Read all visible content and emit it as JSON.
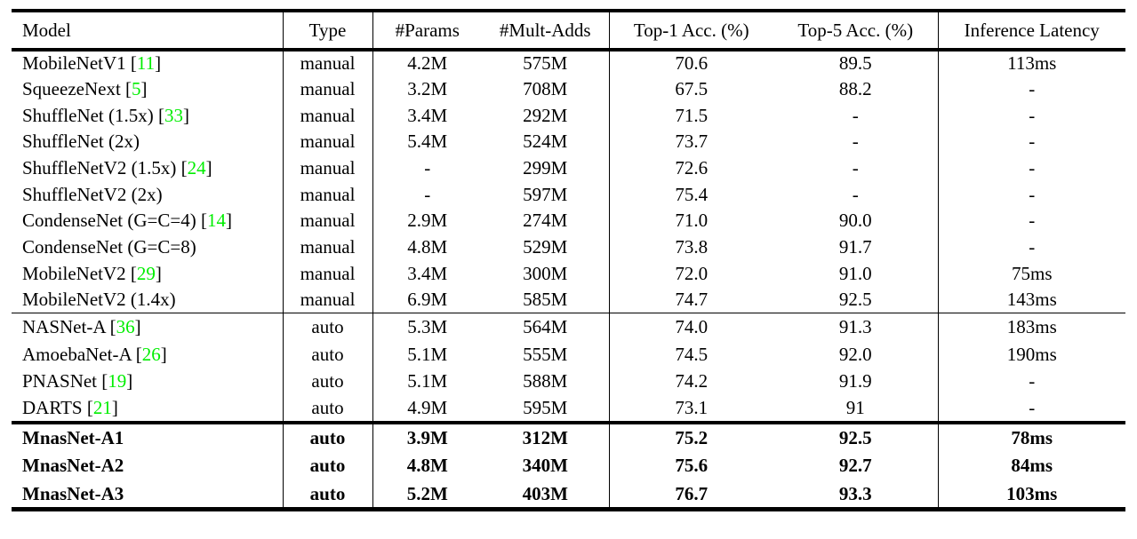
{
  "table": {
    "columns": [
      "Model",
      "Type",
      "#Params",
      "#Mult-Adds",
      "Top-1 Acc. (%)",
      "Top-5 Acc. (%)",
      "Inference Latency"
    ],
    "citation_color": "#00ee00",
    "groups": [
      {
        "name": "manual",
        "bold": false,
        "separator_after": "thin",
        "rows": [
          {
            "model": "MobileNetV1",
            "cite": "11",
            "type": "manual",
            "params": "4.2M",
            "mult_adds": "575M",
            "top1": "70.6",
            "top5": "89.5",
            "latency": "113ms"
          },
          {
            "model": "SqueezeNext",
            "cite": "5",
            "type": "manual",
            "params": "3.2M",
            "mult_adds": "708M",
            "top1": "67.5",
            "top5": "88.2",
            "latency": "-"
          },
          {
            "model": "ShuffleNet (1.5x)",
            "cite": "33",
            "type": "manual",
            "params": "3.4M",
            "mult_adds": "292M",
            "top1": "71.5",
            "top5": "-",
            "latency": "-"
          },
          {
            "model": "ShuffleNet (2x)",
            "cite": null,
            "type": "manual",
            "params": "5.4M",
            "mult_adds": "524M",
            "top1": "73.7",
            "top5": "-",
            "latency": "-"
          },
          {
            "model": "ShuffleNetV2 (1.5x)",
            "cite": "24",
            "type": "manual",
            "params": "-",
            "mult_adds": "299M",
            "top1": "72.6",
            "top5": "-",
            "latency": "-"
          },
          {
            "model": "ShuffleNetV2 (2x)",
            "cite": null,
            "type": "manual",
            "params": "-",
            "mult_adds": "597M",
            "top1": "75.4",
            "top5": "-",
            "latency": "-"
          },
          {
            "model": "CondenseNet (G=C=4)",
            "cite": "14",
            "type": "manual",
            "params": "2.9M",
            "mult_adds": "274M",
            "top1": "71.0",
            "top5": "90.0",
            "latency": "-"
          },
          {
            "model": "CondenseNet (G=C=8)",
            "cite": null,
            "type": "manual",
            "params": "4.8M",
            "mult_adds": "529M",
            "top1": "73.8",
            "top5": "91.7",
            "latency": "-"
          },
          {
            "model": "MobileNetV2",
            "cite": "29",
            "type": "manual",
            "params": "3.4M",
            "mult_adds": "300M",
            "top1": "72.0",
            "top5": "91.0",
            "latency": "75ms"
          },
          {
            "model": "MobileNetV2 (1.4x)",
            "cite": null,
            "type": "manual",
            "params": "6.9M",
            "mult_adds": "585M",
            "top1": "74.7",
            "top5": "92.5",
            "latency": "143ms"
          }
        ]
      },
      {
        "name": "auto",
        "bold": false,
        "separator_after": "thick",
        "rows": [
          {
            "model": "NASNet-A",
            "cite": "36",
            "type": "auto",
            "params": "5.3M",
            "mult_adds": "564M",
            "top1": "74.0",
            "top5": "91.3",
            "latency": "183ms"
          },
          {
            "model": "AmoebaNet-A",
            "cite": "26",
            "type": "auto",
            "params": "5.1M",
            "mult_adds": "555M",
            "top1": "74.5",
            "top5": "92.0",
            "latency": "190ms"
          },
          {
            "model": "PNASNet",
            "cite": "19",
            "type": "auto",
            "params": "5.1M",
            "mult_adds": "588M",
            "top1": "74.2",
            "top5": "91.9",
            "latency": "-"
          },
          {
            "model": "DARTS",
            "cite": "21",
            "type": "auto",
            "params": "4.9M",
            "mult_adds": "595M",
            "top1": "73.1",
            "top5": "91",
            "latency": "-"
          }
        ]
      },
      {
        "name": "mnasnet",
        "bold": true,
        "separator_after": "none",
        "rows": [
          {
            "model": "MnasNet-A1",
            "cite": null,
            "type": "auto",
            "params": "3.9M",
            "mult_adds": "312M",
            "top1": "75.2",
            "top5": "92.5",
            "latency": "78ms"
          },
          {
            "model": "MnasNet-A2",
            "cite": null,
            "type": "auto",
            "params": "4.8M",
            "mult_adds": "340M",
            "top1": "75.6",
            "top5": "92.7",
            "latency": "84ms"
          },
          {
            "model": "MnasNet-A3",
            "cite": null,
            "type": "auto",
            "params": "5.2M",
            "mult_adds": "403M",
            "top1": "76.7",
            "top5": "93.3",
            "latency": "103ms"
          }
        ]
      }
    ]
  }
}
